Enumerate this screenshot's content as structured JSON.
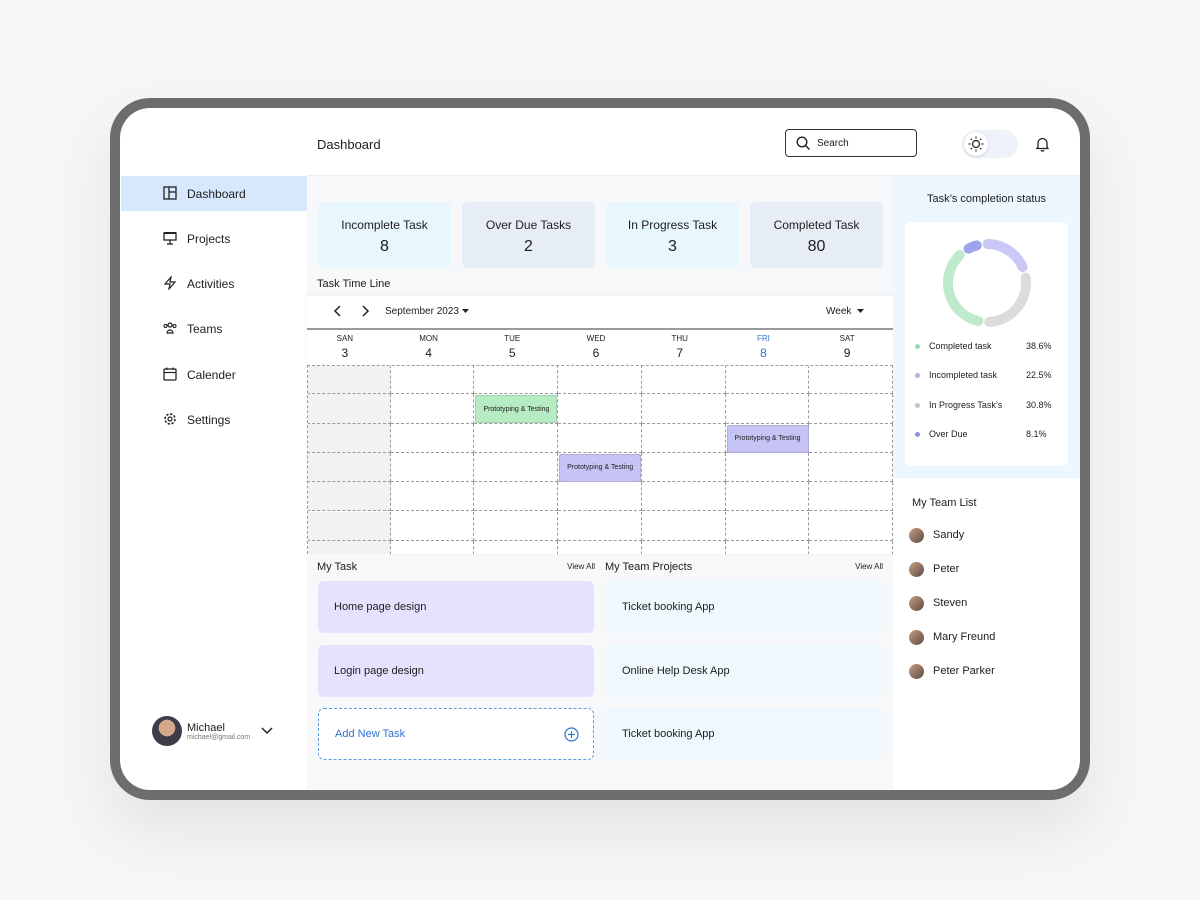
{
  "header": {
    "title": "Dashboard",
    "search_placeholder": "Search"
  },
  "sidebar": {
    "nav": [
      "Dashboard",
      "Projects",
      "Activities",
      "Teams",
      "Calender",
      "Settings"
    ],
    "user": {
      "name": "Michael",
      "email": "michael@gmail.com"
    }
  },
  "stats": [
    {
      "label": "Incomplete Task",
      "value": 8
    },
    {
      "label": "Over Due Tasks",
      "value": 2
    },
    {
      "label": "In Progress Task",
      "value": 3
    },
    {
      "label": "Completed Task",
      "value": 80
    }
  ],
  "timeline": {
    "title": "Task Time Line",
    "month": "September 2023",
    "view": "Week",
    "days": [
      {
        "name": "SAN",
        "date": 3
      },
      {
        "name": "MON",
        "date": 4
      },
      {
        "name": "TUE",
        "date": 5
      },
      {
        "name": "WED",
        "date": 6
      },
      {
        "name": "THU",
        "date": 7
      },
      {
        "name": "FRI",
        "date": 8,
        "color": "#2f74d0"
      },
      {
        "name": "SAT",
        "date": 9
      }
    ],
    "events": [
      {
        "label": "Prototyping & Testing",
        "color": "#b7ebc3"
      },
      {
        "label": "Prototyping & Testing",
        "color": "#c6c3f5"
      },
      {
        "label": "Prototyping & Testing",
        "color": "#c6c3f5"
      }
    ]
  },
  "completion": {
    "title": "Task’s completion status",
    "labels": [
      "Completed task",
      "Incompleted task",
      "In Progress Task’s",
      "Over Due"
    ],
    "values": [
      38.6,
      22.5,
      30.8,
      8.1
    ],
    "value_labels": [
      "38.6%",
      "22.5%",
      "30.8%",
      "8.1%"
    ],
    "colors": [
      "#bfeacb",
      "#c9c8f7",
      "#dcdcdc",
      "#9fa3ec"
    ]
  },
  "my_tasks": {
    "title": "My Task",
    "view_all": "View All",
    "items": [
      "Home page design",
      "Login page design"
    ],
    "add": "Add New Task"
  },
  "team_projects": {
    "title": "My Team Projects",
    "view_all": "View All",
    "items": [
      "Ticket booking App",
      "Online Help Desk App",
      "Ticket booking App"
    ]
  },
  "team": {
    "title": "My Team List",
    "members": [
      "Sandy",
      "Peter",
      "Steven",
      "Mary Freund",
      "Peter Parker"
    ]
  }
}
